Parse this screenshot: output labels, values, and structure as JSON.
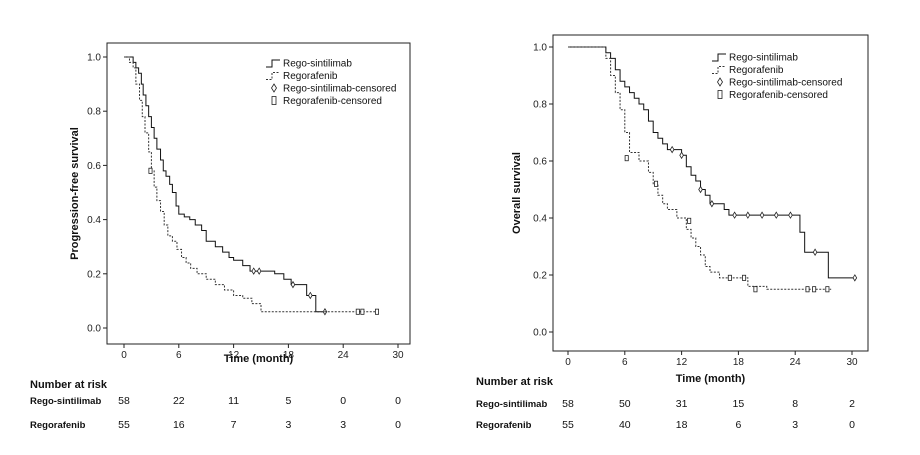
{
  "chart_data": [
    {
      "type": "line",
      "subtype": "kaplan-meier",
      "ylabel": "Progression-free survival",
      "xlabel": "Time (month)",
      "xlim": [
        0,
        30
      ],
      "ylim": [
        0,
        1
      ],
      "xticks": [
        "0",
        "6",
        "12",
        "18",
        "24",
        "30"
      ],
      "yticks": [
        "0.0",
        "0.2",
        "0.4",
        "0.6",
        "0.8",
        "1.0"
      ],
      "legend": [
        "Rego-sintilimab",
        "Regorafenib",
        "Rego-sintilimab-censored",
        "Regorafenib-censored"
      ],
      "legend_position": "top-right",
      "series": [
        {
          "name": "Rego-sintilimab",
          "style": "solid",
          "steps": [
            [
              0,
              1.0
            ],
            [
              0.5,
              1.0
            ],
            [
              1.0,
              0.98
            ],
            [
              1.3,
              0.96
            ],
            [
              1.6,
              0.94
            ],
            [
              1.9,
              0.9
            ],
            [
              2.1,
              0.86
            ],
            [
              2.4,
              0.82
            ],
            [
              2.7,
              0.78
            ],
            [
              3.0,
              0.74
            ],
            [
              3.3,
              0.7
            ],
            [
              3.6,
              0.66
            ],
            [
              4.0,
              0.62
            ],
            [
              4.3,
              0.58
            ],
            [
              4.6,
              0.56
            ],
            [
              5.0,
              0.53
            ],
            [
              5.3,
              0.5
            ],
            [
              5.7,
              0.45
            ],
            [
              6.0,
              0.42
            ],
            [
              6.6,
              0.41
            ],
            [
              7.2,
              0.4
            ],
            [
              7.8,
              0.38
            ],
            [
              8.5,
              0.36
            ],
            [
              9.0,
              0.32
            ],
            [
              10.0,
              0.3
            ],
            [
              10.8,
              0.28
            ],
            [
              11.5,
              0.26
            ],
            [
              12.0,
              0.25
            ],
            [
              13.0,
              0.23
            ],
            [
              13.8,
              0.21
            ],
            [
              16.5,
              0.2
            ],
            [
              17.5,
              0.18
            ],
            [
              18.3,
              0.16
            ],
            [
              20.0,
              0.12
            ],
            [
              21.0,
              0.06
            ],
            [
              22.0,
              0.06
            ]
          ],
          "censored": [
            [
              14.2,
              0.21
            ],
            [
              14.8,
              0.21
            ],
            [
              18.5,
              0.16
            ],
            [
              20.4,
              0.12
            ],
            [
              22.0,
              0.06
            ]
          ]
        },
        {
          "name": "Regorafenib",
          "style": "dashed",
          "steps": [
            [
              0,
              1.0
            ],
            [
              0.6,
              0.98
            ],
            [
              1.0,
              0.96
            ],
            [
              1.3,
              0.9
            ],
            [
              1.7,
              0.84
            ],
            [
              2.0,
              0.78
            ],
            [
              2.3,
              0.72
            ],
            [
              2.7,
              0.65
            ],
            [
              3.0,
              0.58
            ],
            [
              3.3,
              0.52
            ],
            [
              3.6,
              0.47
            ],
            [
              4.0,
              0.43
            ],
            [
              4.4,
              0.38
            ],
            [
              4.8,
              0.34
            ],
            [
              5.3,
              0.32
            ],
            [
              5.8,
              0.29
            ],
            [
              6.3,
              0.26
            ],
            [
              6.8,
              0.24
            ],
            [
              7.3,
              0.22
            ],
            [
              8.0,
              0.2
            ],
            [
              9.0,
              0.18
            ],
            [
              10.0,
              0.16
            ],
            [
              11.0,
              0.14
            ],
            [
              12.0,
              0.12
            ],
            [
              13.0,
              0.11
            ],
            [
              14.0,
              0.09
            ],
            [
              15.0,
              0.06
            ],
            [
              28.0,
              0.06
            ]
          ],
          "censored": [
            [
              2.9,
              0.58
            ],
            [
              25.6,
              0.06
            ],
            [
              26.1,
              0.06
            ],
            [
              27.7,
              0.06
            ]
          ]
        }
      ],
      "risk_table": {
        "title": "Number at risk",
        "times": [
          0,
          6,
          12,
          18,
          24,
          30
        ],
        "rows": [
          {
            "label": "Rego-sintilimab",
            "values": [
              "58",
              "22",
              "11",
              "5",
              "0",
              "0"
            ]
          },
          {
            "label": "Regorafenib",
            "values": [
              "55",
              "16",
              "7",
              "3",
              "3",
              "0"
            ]
          }
        ]
      }
    },
    {
      "type": "line",
      "subtype": "kaplan-meier",
      "ylabel": "Overall survival",
      "xlabel": "Time (month)",
      "xlim": [
        0,
        30
      ],
      "ylim": [
        0,
        1
      ],
      "xticks": [
        "0",
        "6",
        "12",
        "18",
        "24",
        "30"
      ],
      "yticks": [
        "0.0",
        "0.2",
        "0.4",
        "0.6",
        "0.8",
        "1.0"
      ],
      "legend": [
        "Rego-sintilimab",
        "Regorafenib",
        "Rego-sintilimab-censored",
        "Regorafenib-censored"
      ],
      "legend_position": "top-right",
      "series": [
        {
          "name": "Rego-sintilimab",
          "style": "solid",
          "steps": [
            [
              0,
              1.0
            ],
            [
              3.5,
              1.0
            ],
            [
              4.0,
              0.98
            ],
            [
              4.5,
              0.96
            ],
            [
              5.0,
              0.92
            ],
            [
              5.5,
              0.88
            ],
            [
              6.0,
              0.86
            ],
            [
              6.5,
              0.84
            ],
            [
              7.0,
              0.82
            ],
            [
              7.5,
              0.8
            ],
            [
              8.0,
              0.78
            ],
            [
              8.5,
              0.74
            ],
            [
              9.0,
              0.7
            ],
            [
              9.5,
              0.68
            ],
            [
              10.0,
              0.66
            ],
            [
              10.5,
              0.64
            ],
            [
              12.0,
              0.62
            ],
            [
              12.5,
              0.58
            ],
            [
              13.0,
              0.55
            ],
            [
              13.5,
              0.53
            ],
            [
              14.0,
              0.5
            ],
            [
              14.5,
              0.48
            ],
            [
              15.0,
              0.45
            ],
            [
              16.5,
              0.43
            ],
            [
              17.0,
              0.41
            ],
            [
              24.5,
              0.35
            ],
            [
              25.0,
              0.28
            ],
            [
              27.5,
              0.19
            ],
            [
              30.5,
              0.19
            ]
          ],
          "censored": [
            [
              11.0,
              0.64
            ],
            [
              12.0,
              0.62
            ],
            [
              14.0,
              0.5
            ],
            [
              15.2,
              0.45
            ],
            [
              17.6,
              0.41
            ],
            [
              19.0,
              0.41
            ],
            [
              20.5,
              0.41
            ],
            [
              22.0,
              0.41
            ],
            [
              23.5,
              0.41
            ],
            [
              26.1,
              0.28
            ],
            [
              30.3,
              0.19
            ]
          ]
        },
        {
          "name": "Regorafenib",
          "style": "dashed",
          "steps": [
            [
              0,
              1.0
            ],
            [
              3.5,
              1.0
            ],
            [
              4.0,
              0.96
            ],
            [
              4.5,
              0.9
            ],
            [
              5.0,
              0.84
            ],
            [
              5.5,
              0.78
            ],
            [
              6.0,
              0.7
            ],
            [
              6.5,
              0.63
            ],
            [
              7.5,
              0.6
            ],
            [
              8.5,
              0.56
            ],
            [
              9.0,
              0.52
            ],
            [
              9.5,
              0.48
            ],
            [
              10.0,
              0.45
            ],
            [
              10.5,
              0.43
            ],
            [
              11.5,
              0.4
            ],
            [
              12.5,
              0.36
            ],
            [
              13.0,
              0.33
            ],
            [
              13.5,
              0.3
            ],
            [
              14.0,
              0.27
            ],
            [
              14.5,
              0.23
            ],
            [
              15.0,
              0.21
            ],
            [
              16.0,
              0.19
            ],
            [
              19.0,
              0.16
            ],
            [
              21.0,
              0.15
            ],
            [
              27.8,
              0.15
            ]
          ],
          "censored": [
            [
              6.2,
              0.61
            ],
            [
              9.3,
              0.52
            ],
            [
              12.8,
              0.39
            ],
            [
              17.1,
              0.19
            ],
            [
              18.6,
              0.19
            ],
            [
              19.8,
              0.15
            ],
            [
              25.3,
              0.15
            ],
            [
              26.0,
              0.15
            ],
            [
              27.4,
              0.15
            ]
          ]
        }
      ],
      "risk_table": {
        "title": "Number at risk",
        "times": [
          0,
          6,
          12,
          18,
          24,
          30
        ],
        "rows": [
          {
            "label": "Rego-sintilimab",
            "values": [
              "58",
              "50",
              "31",
              "15",
              "8",
              "2"
            ]
          },
          {
            "label": "Regorafenib",
            "values": [
              "55",
              "40",
              "18",
              "6",
              "3",
              "0"
            ]
          }
        ]
      }
    }
  ]
}
